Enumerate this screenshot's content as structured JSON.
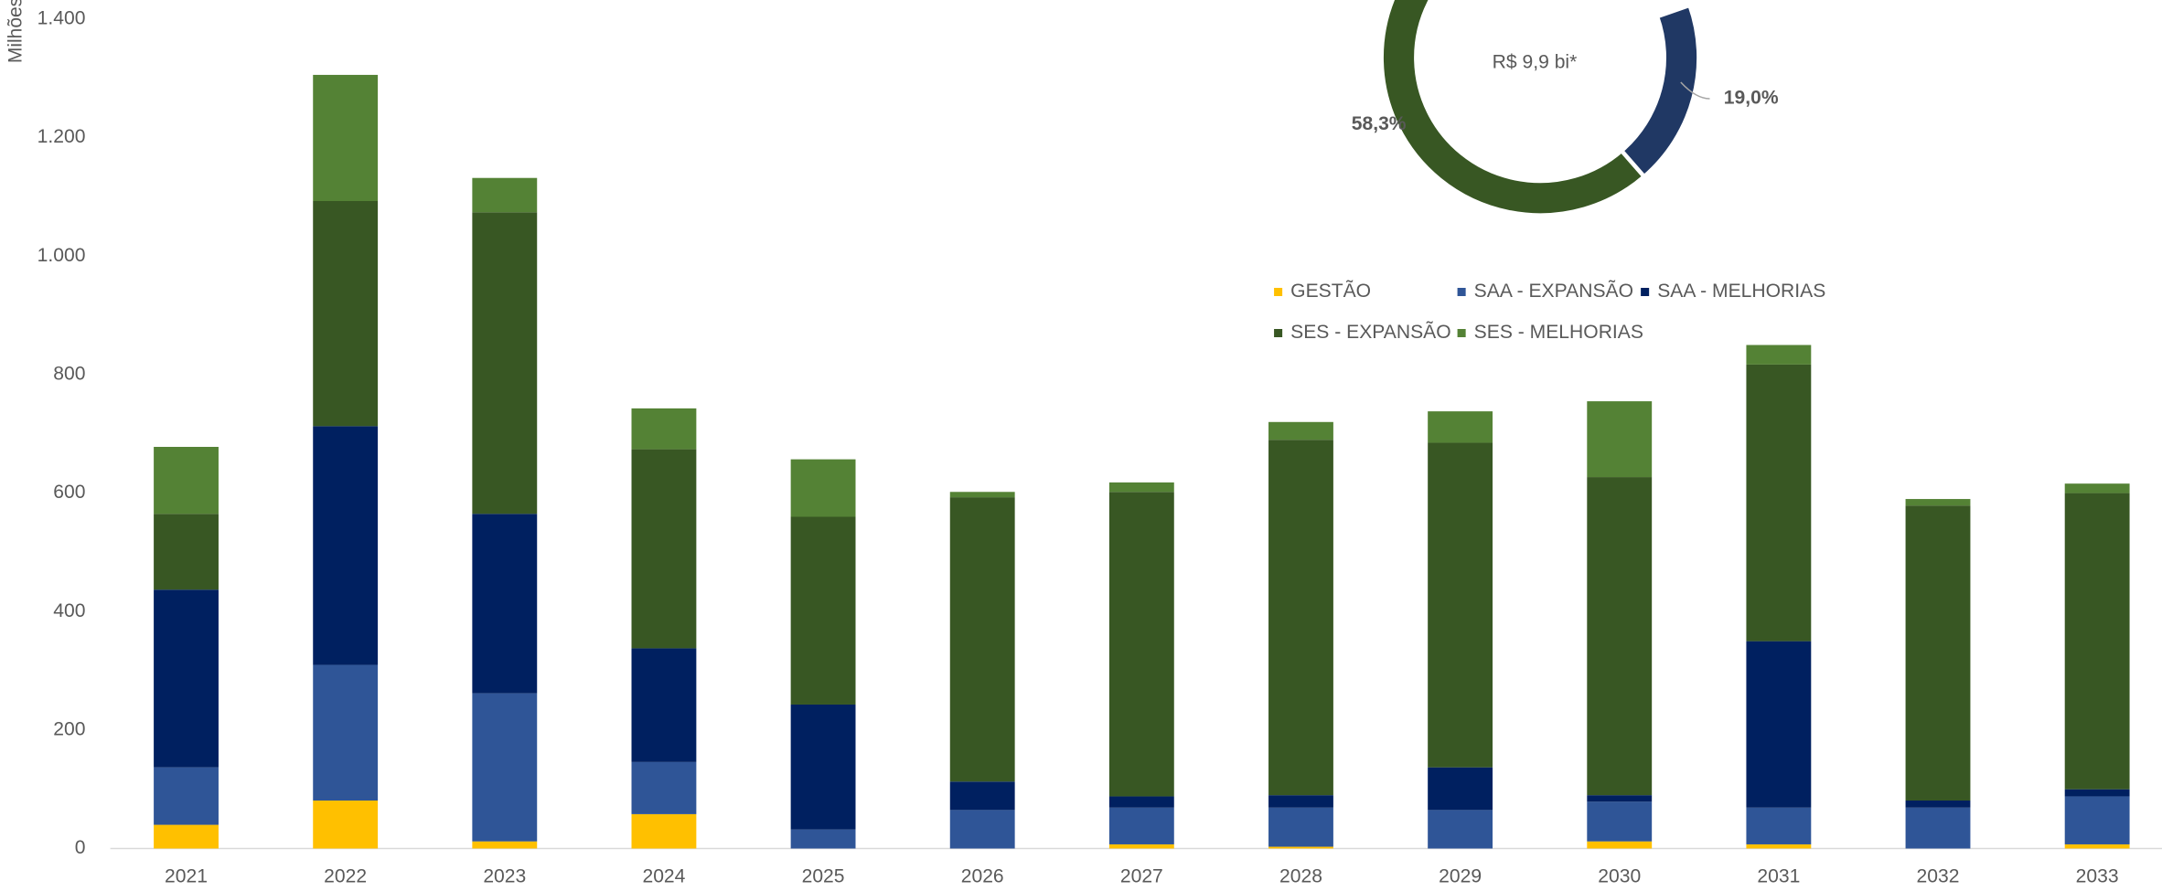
{
  "chart_data": [
    {
      "type": "bar",
      "stacked": true,
      "y_label": "Milhões",
      "categories": [
        "2021",
        "2022",
        "2023",
        "2024",
        "2025",
        "2026",
        "2027",
        "2028",
        "2029",
        "2030",
        "2031",
        "2032",
        "2033"
      ],
      "series": [
        {
          "name": "GESTÃO",
          "color": "#ffc000",
          "values": [
            40,
            81,
            12,
            58,
            0,
            0,
            7,
            3,
            0,
            12,
            7,
            0,
            7
          ]
        },
        {
          "name": "SAA - EXPANSÃO",
          "color": "#2f5597",
          "values": [
            97,
            229,
            250,
            88,
            32,
            65,
            62,
            66,
            65,
            67,
            62,
            69,
            81
          ]
        },
        {
          "name": "SAA - MELHORIAS",
          "color": "#002060",
          "values": [
            300,
            403,
            303,
            192,
            211,
            48,
            19,
            21,
            72,
            11,
            281,
            12,
            12
          ]
        },
        {
          "name": "SES - EXPANSÃO",
          "color": "#385723",
          "values": [
            128,
            380,
            509,
            336,
            317,
            480,
            514,
            600,
            548,
            537,
            467,
            498,
            500
          ]
        },
        {
          "name": "SES - MELHORIAS",
          "color": "#548235",
          "values": [
            113,
            213,
            58,
            69,
            97,
            9,
            16,
            30,
            53,
            128,
            33,
            11,
            16
          ]
        }
      ],
      "ylim": [
        0,
        1400
      ],
      "yticks": [
        0,
        200,
        400,
        600,
        800,
        {
          "value": 1000,
          "label": "1.000"
        },
        {
          "value": 1200,
          "label": "1.200"
        },
        {
          "value": 1400,
          "label": "1.400"
        }
      ]
    },
    {
      "type": "pie",
      "donut": true,
      "center_text": "R$ 9,9 bi*",
      "values": [
        58.3,
        19.0
      ],
      "value_labels": [
        "58,3%",
        "19,0%"
      ],
      "colors": [
        "#385723",
        "#203864"
      ]
    }
  ]
}
